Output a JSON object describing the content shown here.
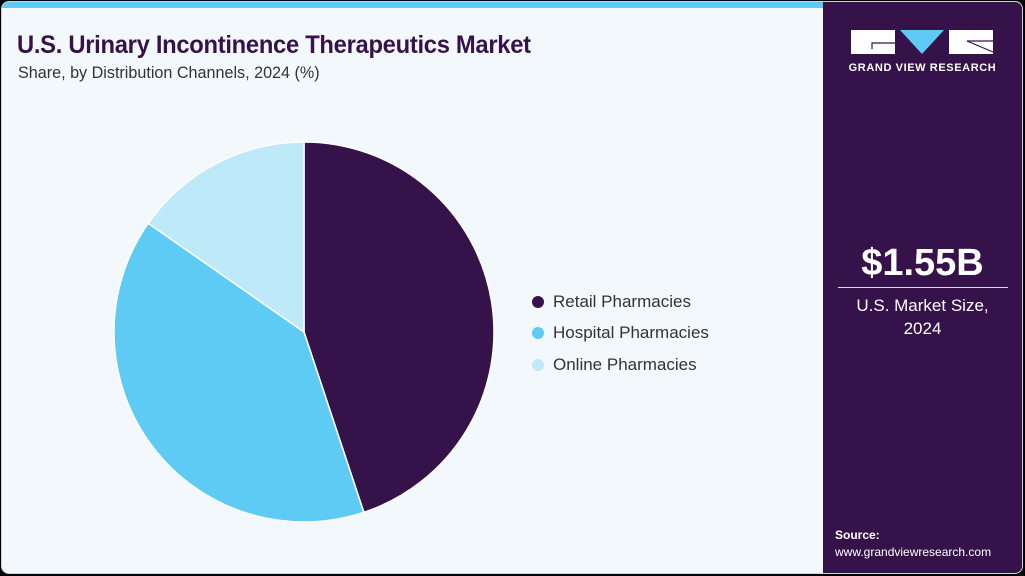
{
  "header": {
    "title": "U.S. Urinary Incontinence Therapeutics Market",
    "subtitle": "Share, by Distribution Channels, 2024 (%)"
  },
  "colors": {
    "accent_bar": "#5ecbf5",
    "sidebar_bg": "#36124a",
    "card_bg": "#f3f8fc"
  },
  "legend": {
    "items": [
      {
        "label": "Retail Pharmacies",
        "color": "#36124a"
      },
      {
        "label": "Hospital Pharmacies",
        "color": "#5ecbf5"
      },
      {
        "label": "Online Pharmacies",
        "color": "#bde9f9"
      }
    ]
  },
  "sidebar": {
    "logo_text": "GRAND VIEW RESEARCH",
    "market_value": "$1.55B",
    "market_label_line1": "U.S. Market Size,",
    "market_label_line2": "2024",
    "source_title": "Source:",
    "source_url": "www.grandviewresearch.com"
  },
  "chart_data": {
    "type": "pie",
    "title": "U.S. Urinary Incontinence Therapeutics Market",
    "subtitle": "Share, by Distribution Channels, 2024 (%)",
    "categories": [
      "Retail Pharmacies",
      "Hospital Pharmacies",
      "Online Pharmacies"
    ],
    "values": [
      44.9,
      39.8,
      15.3
    ],
    "colors": [
      "#36124a",
      "#5ecbf5",
      "#bde9f9"
    ],
    "start_angle": "12 o'clock, clockwise",
    "legend_position": "right",
    "annotations": [
      "$1.55B U.S. Market Size, 2024"
    ]
  }
}
